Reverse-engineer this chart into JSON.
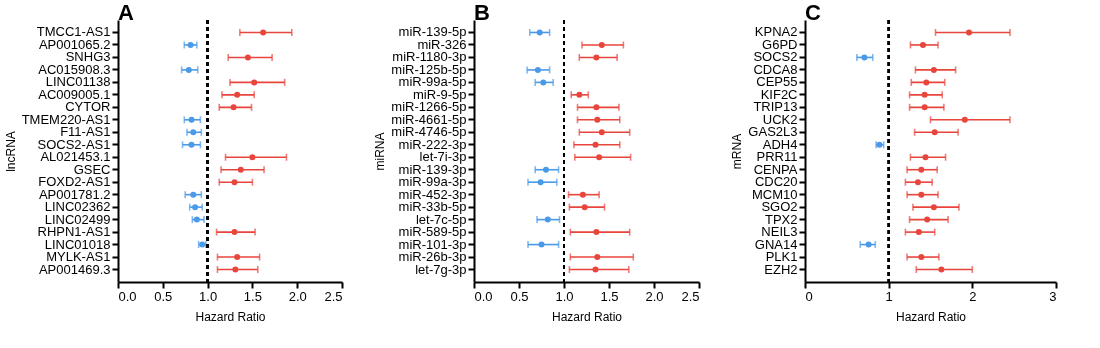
{
  "chart_data": [
    {
      "type": "scatter",
      "orientation": "horizontal",
      "title": "A",
      "xlabel": "Hazard Ratio",
      "ylabel": "lncRNA",
      "marker": "circle",
      "grid": false,
      "categories": [
        "TMCC1-AS1",
        "AP001065.2",
        "SNHG3",
        "AC015908.3",
        "LINC01138",
        "AC009005.1",
        "CYTOR",
        "TMEM220-AS1",
        "F11-AS1",
        "SOCS2-AS1",
        "AL021453.1",
        "GSEC",
        "FOXD2-AS1",
        "AP001781.2",
        "LINC02362",
        "LINC02499",
        "RHPN1-AS1",
        "LINC01018",
        "MYLK-AS1",
        "AP001469.3"
      ],
      "values": [
        1.62,
        0.81,
        1.45,
        0.79,
        1.52,
        1.33,
        1.29,
        0.82,
        0.84,
        0.82,
        1.5,
        1.37,
        1.3,
        0.84,
        0.86,
        0.88,
        1.3,
        0.94,
        1.33,
        1.31
      ],
      "errors": [
        [
          1.36,
          1.94
        ],
        [
          0.74,
          0.88
        ],
        [
          1.23,
          1.72
        ],
        [
          0.71,
          0.89
        ],
        [
          1.25,
          1.86
        ],
        [
          1.16,
          1.52
        ],
        [
          1.13,
          1.49
        ],
        [
          0.74,
          0.92
        ],
        [
          0.77,
          0.93
        ],
        [
          0.72,
          0.92
        ],
        [
          1.2,
          1.88
        ],
        [
          1.15,
          1.63
        ],
        [
          1.13,
          1.5
        ],
        [
          0.75,
          0.93
        ],
        [
          0.8,
          0.94
        ],
        [
          0.83,
          0.96
        ],
        [
          1.1,
          1.53
        ],
        [
          0.9,
          0.98
        ],
        [
          1.11,
          1.58
        ],
        [
          1.11,
          1.56
        ]
      ],
      "colors": [
        "#e8453c",
        "#4a9ae8",
        "#e8453c",
        "#4a9ae8",
        "#e8453c",
        "#e8453c",
        "#e8453c",
        "#4a9ae8",
        "#4a9ae8",
        "#4a9ae8",
        "#e8453c",
        "#e8453c",
        "#e8453c",
        "#4a9ae8",
        "#4a9ae8",
        "#4a9ae8",
        "#e8453c",
        "#4a9ae8",
        "#e8453c",
        "#e8453c"
      ],
      "xlim": [
        0,
        2.5
      ],
      "xticks": [
        {
          "value": 0,
          "label": "0.0"
        },
        0.5,
        {
          "value": 1,
          "label": "1.0"
        },
        1.5,
        {
          "value": 2,
          "label": "2.0"
        },
        2.5
      ],
      "ref_lines": [
        {
          "axis": "x",
          "value": 1,
          "line_style": "dashed",
          "color": "#000000"
        }
      ]
    },
    {
      "type": "scatter",
      "orientation": "horizontal",
      "title": "B",
      "xlabel": "Hazard Ratio",
      "ylabel": "miRNA",
      "marker": "circle",
      "grid": false,
      "categories": [
        "miR-139-5p",
        "miR-326",
        "miR-1180-3p",
        "miR-125b-5p",
        "miR-99a-5p",
        "miR-9-5p",
        "miR-1266-5p",
        "miR-4661-5p",
        "miR-4746-5p",
        "miR-222-3p",
        "let-7i-3p",
        "miR-139-3p",
        "miR-99a-3p",
        "miR-452-3p",
        "miR-33b-5p",
        "let-7c-5p",
        "miR-589-5p",
        "miR-101-3p",
        "miR-26b-3p",
        "let-7g-3p"
      ],
      "values": [
        0.73,
        1.42,
        1.36,
        0.71,
        0.77,
        1.17,
        1.36,
        1.37,
        1.42,
        1.35,
        1.39,
        0.8,
        0.74,
        1.21,
        1.23,
        0.82,
        1.36,
        0.75,
        1.37,
        1.35
      ],
      "errors": [
        [
          0.62,
          0.84
        ],
        [
          1.2,
          1.66
        ],
        [
          1.17,
          1.59
        ],
        [
          0.59,
          0.84
        ],
        [
          0.68,
          0.88
        ],
        [
          1.08,
          1.27
        ],
        [
          1.15,
          1.61
        ],
        [
          1.15,
          1.62
        ],
        [
          1.17,
          1.73
        ],
        [
          1.11,
          1.62
        ],
        [
          1.12,
          1.74
        ],
        [
          0.68,
          0.94
        ],
        [
          0.6,
          0.92
        ],
        [
          1.05,
          1.39
        ],
        [
          1.06,
          1.45
        ],
        [
          0.7,
          0.95
        ],
        [
          1.07,
          1.73
        ],
        [
          0.6,
          0.94
        ],
        [
          1.07,
          1.77
        ],
        [
          1.06,
          1.72
        ]
      ],
      "colors": [
        "#4a9ae8",
        "#e8453c",
        "#e8453c",
        "#4a9ae8",
        "#4a9ae8",
        "#e8453c",
        "#e8453c",
        "#e8453c",
        "#e8453c",
        "#e8453c",
        "#e8453c",
        "#4a9ae8",
        "#4a9ae8",
        "#e8453c",
        "#e8453c",
        "#4a9ae8",
        "#e8453c",
        "#4a9ae8",
        "#e8453c",
        "#e8453c"
      ],
      "xlim": [
        0,
        2.5
      ],
      "xticks": [
        {
          "value": 0,
          "label": "0.0"
        },
        0.5,
        {
          "value": 1,
          "label": "1.0"
        },
        1.5,
        {
          "value": 2,
          "label": "2.0"
        },
        2.5
      ],
      "ref_lines": [
        {
          "axis": "x",
          "value": 1,
          "line_style": "dashed",
          "color": "#000000"
        }
      ]
    },
    {
      "type": "scatter",
      "orientation": "horizontal",
      "title": "C",
      "xlabel": "Hazard Ratio",
      "ylabel": "mRNA",
      "marker": "circle",
      "grid": false,
      "categories": [
        "KPNA2",
        "G6PD",
        "SOCS2",
        "CDCA8",
        "CEP55",
        "KIF2C",
        "TRIP13",
        "UCK2",
        "GAS2L3",
        "ADH4",
        "PRR11",
        "CENPA",
        "CDC20",
        "MCM10",
        "SGO2",
        "TPX2",
        "NEIL3",
        "GNA14",
        "PLK1",
        "EZH2"
      ],
      "values": [
        1.96,
        1.41,
        0.71,
        1.54,
        1.45,
        1.43,
        1.43,
        1.91,
        1.55,
        0.89,
        1.44,
        1.39,
        1.35,
        1.39,
        1.54,
        1.46,
        1.36,
        0.76,
        1.39,
        1.63
      ],
      "errors": [
        [
          1.56,
          2.45
        ],
        [
          1.26,
          1.59
        ],
        [
          0.62,
          0.81
        ],
        [
          1.32,
          1.8
        ],
        [
          1.27,
          1.67
        ],
        [
          1.25,
          1.64
        ],
        [
          1.25,
          1.66
        ],
        [
          1.5,
          2.45
        ],
        [
          1.31,
          1.83
        ],
        [
          0.85,
          0.94
        ],
        [
          1.26,
          1.68
        ],
        [
          1.22,
          1.58
        ],
        [
          1.2,
          1.52
        ],
        [
          1.22,
          1.59
        ],
        [
          1.29,
          1.84
        ],
        [
          1.25,
          1.71
        ],
        [
          1.2,
          1.55
        ],
        [
          0.66,
          0.84
        ],
        [
          1.22,
          1.6
        ],
        [
          1.33,
          2.0
        ]
      ],
      "colors": [
        "#e8453c",
        "#e8453c",
        "#4a9ae8",
        "#e8453c",
        "#e8453c",
        "#e8453c",
        "#e8453c",
        "#e8453c",
        "#e8453c",
        "#4a9ae8",
        "#e8453c",
        "#e8453c",
        "#e8453c",
        "#e8453c",
        "#e8453c",
        "#e8453c",
        "#e8453c",
        "#4a9ae8",
        "#e8453c",
        "#e8453c"
      ],
      "xlim": [
        0,
        3
      ],
      "xticks": [
        0,
        1,
        2,
        3
      ],
      "ref_lines": [
        {
          "axis": "x",
          "value": 1,
          "line_style": "dashed",
          "color": "#000000"
        }
      ]
    }
  ]
}
